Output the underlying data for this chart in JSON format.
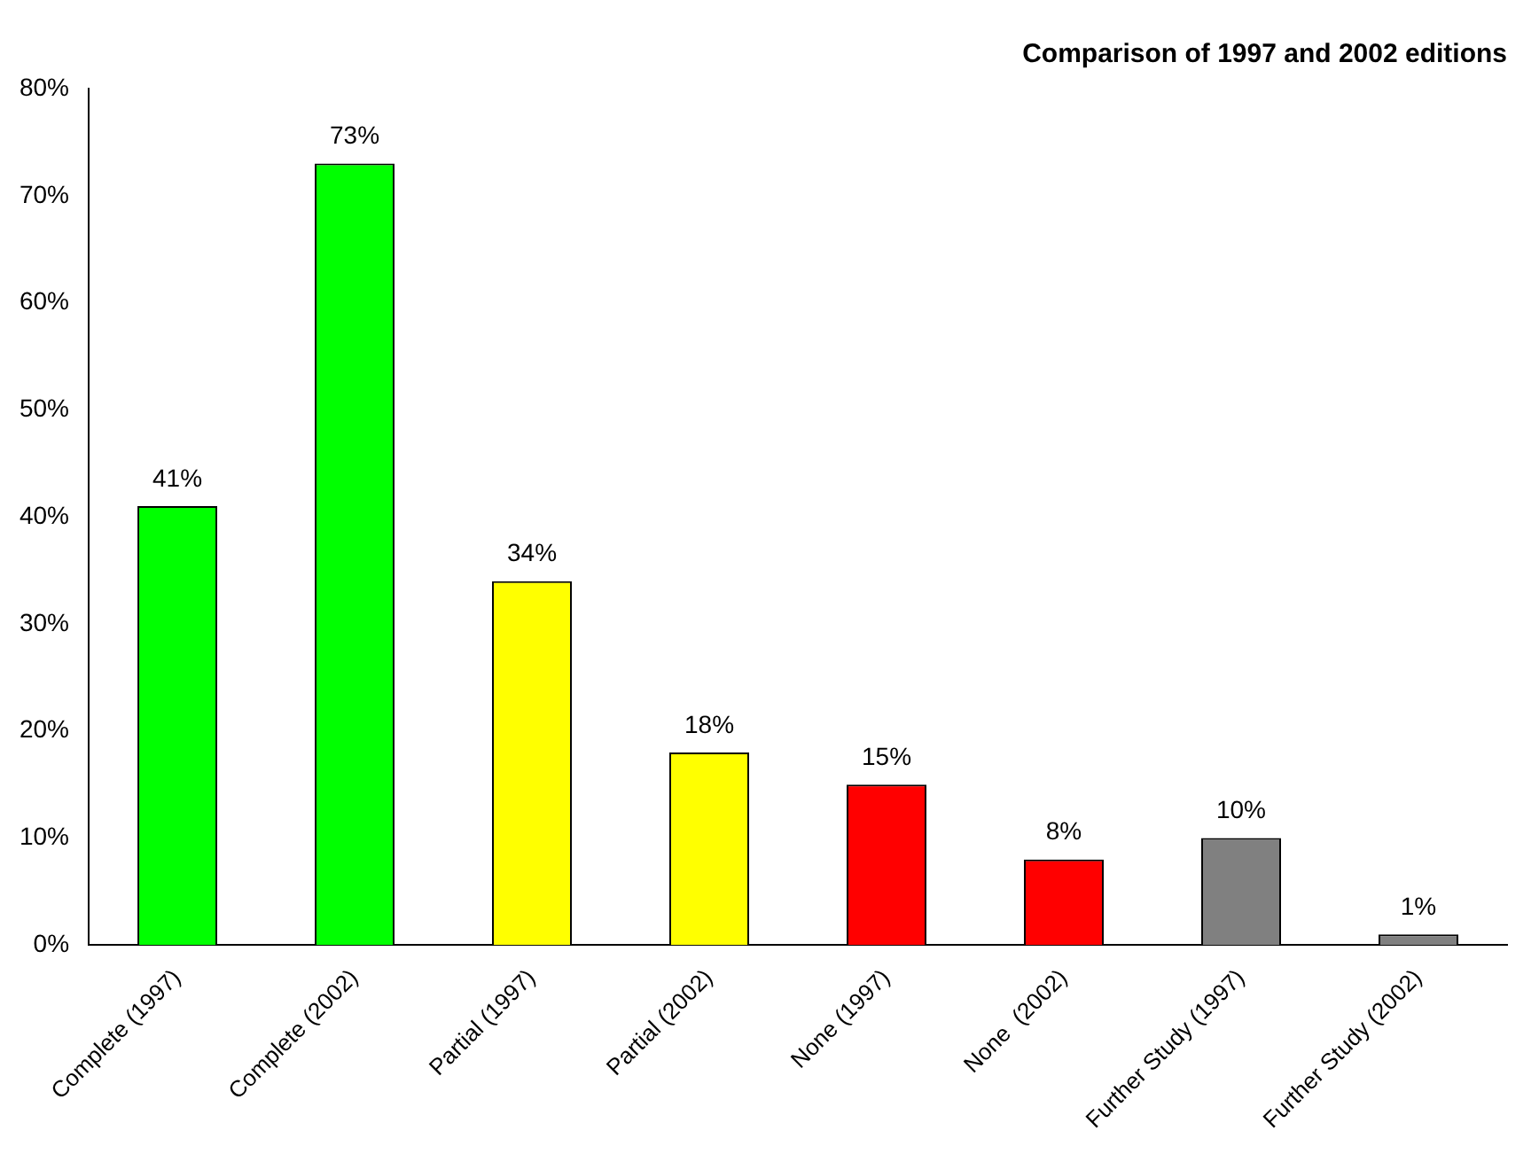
{
  "chart_data": {
    "type": "bar",
    "title": "Comparison of 1997 and 2002 editions",
    "categories": [
      "Complete (1997)",
      "Complete (2002)",
      "Partial (1997)",
      "Partial (2002)",
      "None (1997)",
      "None  (2002)",
      "Further Study (1997)",
      "Further Study (2002)"
    ],
    "values": [
      41,
      73,
      34,
      18,
      15,
      8,
      10,
      1
    ],
    "colors": [
      "#00ff00",
      "#00ff00",
      "#ffff00",
      "#ffff00",
      "#ff0000",
      "#ff0000",
      "#808080",
      "#808080"
    ],
    "value_labels": [
      "41%",
      "73%",
      "34%",
      "18%",
      "15%",
      "8%",
      "10%",
      "1%"
    ],
    "ylim": [
      0,
      80
    ],
    "yticks": [
      {
        "value": 0,
        "label": "0%"
      },
      {
        "value": 10,
        "label": "10%"
      },
      {
        "value": 20,
        "label": "20%"
      },
      {
        "value": 30,
        "label": "30%"
      },
      {
        "value": 40,
        "label": "40%"
      },
      {
        "value": 50,
        "label": "50%"
      },
      {
        "value": 60,
        "label": "60%"
      },
      {
        "value": 70,
        "label": "70%"
      },
      {
        "value": 80,
        "label": "80%"
      }
    ]
  }
}
